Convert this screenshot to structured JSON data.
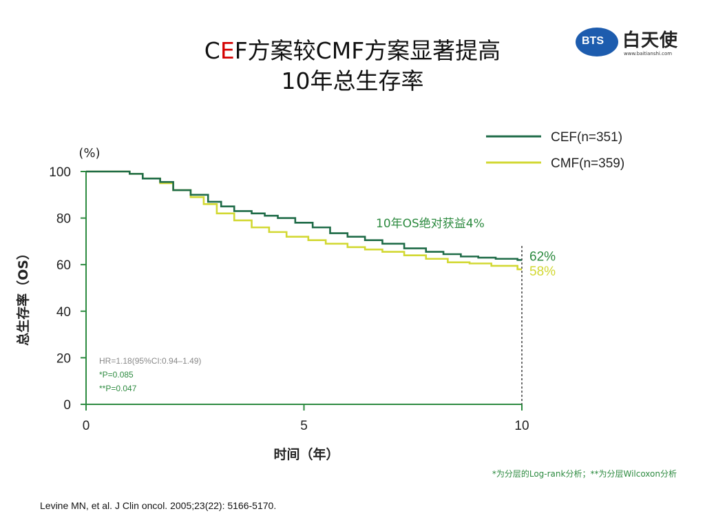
{
  "slide": {
    "title_line1_pre": "C",
    "title_line1_hl": "E",
    "title_line1_post": "F方案较CMF方案显著提高",
    "title_line2": "10年总生存率",
    "logo_badge": "BTS",
    "logo_name": "白天使",
    "logo_url": "www.baitianshi.com",
    "citation": "Levine MN, et al. J Clin oncol. 2005;23(22): 5166-5170.",
    "footnote": "*为分层的Log-rank分析；**为分层Wilcoxon分析"
  },
  "chart_data": {
    "type": "line",
    "title": "",
    "xlabel": "时间（年）",
    "ylabel": "总生存率（OS）",
    "yunit": "(%)",
    "xlim": [
      0,
      10
    ],
    "ylim": [
      0,
      100
    ],
    "xticks": [
      0,
      5,
      10
    ],
    "yticks": [
      0,
      20,
      40,
      60,
      80,
      100
    ],
    "legend_position": "top-right",
    "grid": false,
    "colors": {
      "axis": "#2c8a3f",
      "cef": "#1e6b47",
      "cmf": "#d2d832",
      "label_green": "#2c8a3f",
      "label_yellow": "#d2d832",
      "stats": "#2c8a3f",
      "stats_hr": "#888888"
    },
    "series": [
      {
        "name": "CEF(n=351)",
        "points": [
          [
            0,
            100
          ],
          [
            0.8,
            100
          ],
          [
            1.0,
            99
          ],
          [
            1.3,
            97
          ],
          [
            1.7,
            95.5
          ],
          [
            2.0,
            92
          ],
          [
            2.4,
            90
          ],
          [
            2.8,
            87
          ],
          [
            3.1,
            85
          ],
          [
            3.4,
            83
          ],
          [
            3.8,
            82
          ],
          [
            4.1,
            81
          ],
          [
            4.4,
            80
          ],
          [
            4.8,
            78
          ],
          [
            5.2,
            76
          ],
          [
            5.6,
            73.5
          ],
          [
            6.0,
            72
          ],
          [
            6.4,
            70.5
          ],
          [
            6.8,
            69
          ],
          [
            7.3,
            67
          ],
          [
            7.8,
            65.5
          ],
          [
            8.2,
            64.5
          ],
          [
            8.6,
            63.5
          ],
          [
            9.0,
            63
          ],
          [
            9.4,
            62.5
          ],
          [
            9.9,
            62
          ]
        ],
        "end_label": "62%"
      },
      {
        "name": "CMF(n=359)",
        "points": [
          [
            0,
            100
          ],
          [
            0.8,
            100
          ],
          [
            1.0,
            99
          ],
          [
            1.3,
            97
          ],
          [
            1.7,
            95
          ],
          [
            2.0,
            92
          ],
          [
            2.4,
            89
          ],
          [
            2.7,
            86
          ],
          [
            3.0,
            82
          ],
          [
            3.4,
            79
          ],
          [
            3.8,
            76
          ],
          [
            4.2,
            74
          ],
          [
            4.6,
            72
          ],
          [
            5.1,
            70.5
          ],
          [
            5.5,
            69
          ],
          [
            6.0,
            67.5
          ],
          [
            6.4,
            66.5
          ],
          [
            6.8,
            65.5
          ],
          [
            7.3,
            64
          ],
          [
            7.8,
            62.5
          ],
          [
            8.3,
            61
          ],
          [
            8.8,
            60.5
          ],
          [
            9.3,
            59.5
          ],
          [
            9.9,
            58
          ]
        ],
        "end_label": "58%"
      }
    ],
    "annotations": {
      "benefit": "10年OS绝对获益4%",
      "hr": "HR=1.18(95%CI:0.94–1.49)",
      "p1": "*P=0.085",
      "p2": "**P=0.047"
    }
  }
}
